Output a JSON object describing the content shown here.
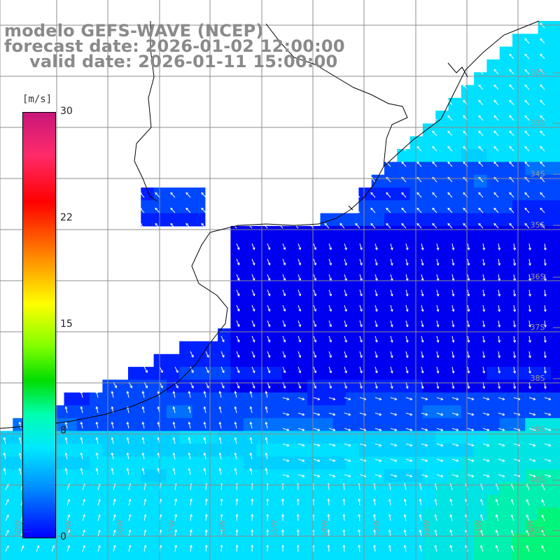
{
  "title": {
    "line1": "modelo GEFS-WAVE (NCEP)",
    "line2": "forecast date: 2026-01-02 12:00:00",
    "line3": "valid date: 2026-01-11 15:00:00"
  },
  "colorbar": {
    "unit": "[m/s]",
    "ticks": [
      {
        "label": "30",
        "value": 30
      },
      {
        "label": "22",
        "value": 22
      },
      {
        "label": "15",
        "value": 15
      },
      {
        "label": "8",
        "value": 8
      },
      {
        "label": "0",
        "value": 0
      }
    ]
  },
  "lat_labels": [
    "32S",
    "33S",
    "34S",
    "35S",
    "36S",
    "37S",
    "38S",
    "39S",
    "40S",
    "41S"
  ],
  "lon_labels": [
    "60W",
    "59W",
    "58W",
    "57W",
    "56W",
    "55W",
    "54W",
    "53W",
    "52W",
    "51W",
    "50W"
  ],
  "colors": {
    "land": "#ffffff",
    "grid": "#8c8c8c",
    "coast": "#000000",
    "arrow": "#ffffff",
    "wind_low": "#0000ff",
    "wind_mid": "#00d8ff",
    "wind_high": "#00ff60"
  }
}
